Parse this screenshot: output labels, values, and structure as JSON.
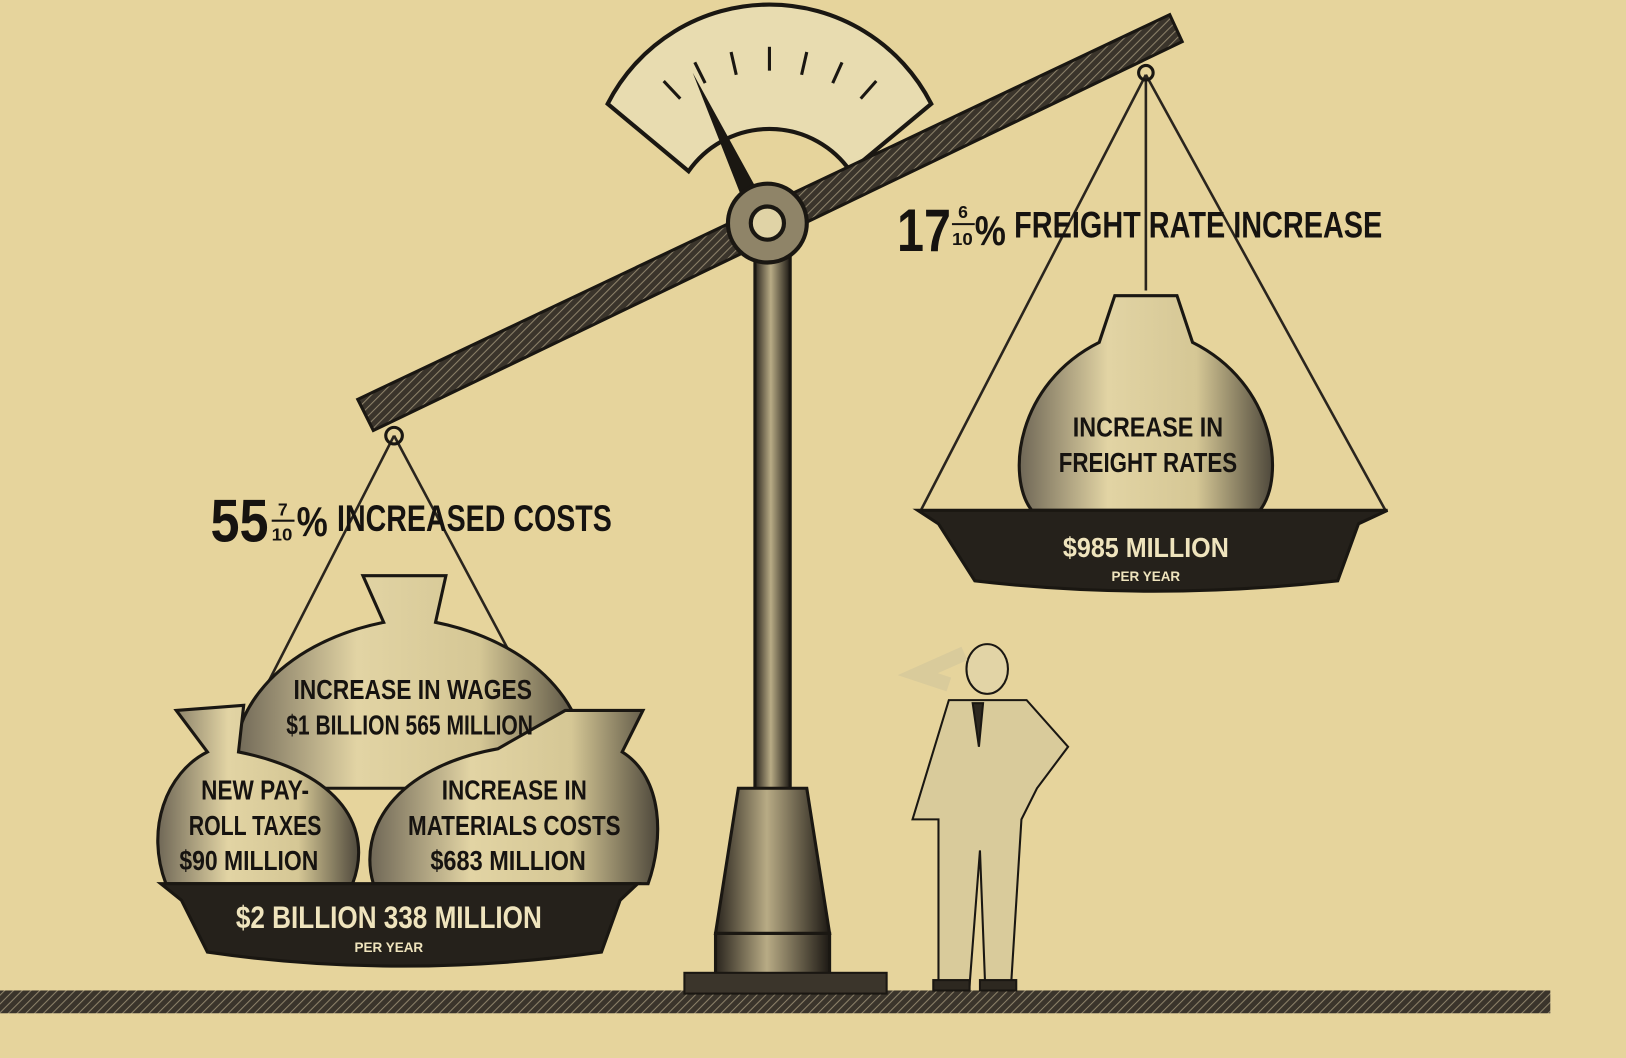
{
  "left_heading": {
    "whole": "55",
    "numerator": "7",
    "denominator": "10",
    "percent": "%",
    "text": "INCREASED COSTS"
  },
  "right_heading": {
    "whole": "17",
    "numerator": "6",
    "denominator": "10",
    "percent": "%",
    "text": "FREIGHT RATE INCREASE"
  },
  "right_bag": {
    "lines": [
      "INCREASE IN",
      "FREIGHT RATES"
    ]
  },
  "right_pan": {
    "amount": "$985 MILLION",
    "period": "PER YEAR"
  },
  "left_bags": [
    {
      "lines": [
        "INCREASE IN WAGES",
        "$1 BILLION 565 MILLION"
      ]
    },
    {
      "lines": [
        "NEW PAY-",
        "ROLL TAXES",
        "$90 MILLION"
      ]
    },
    {
      "lines": [
        "INCREASE IN",
        "MATERIALS COSTS",
        "$683 MILLION"
      ]
    }
  ],
  "left_pan": {
    "amount": "$2 BILLION 338 MILLION",
    "period": "PER YEAR"
  }
}
